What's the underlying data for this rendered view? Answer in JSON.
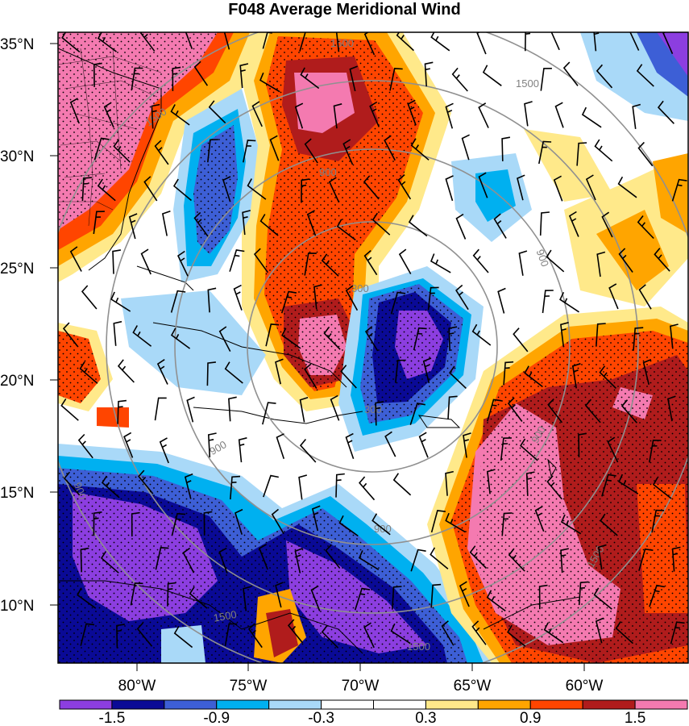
{
  "title": "F048 Average Meridional Wind",
  "lat_ticks": [
    "35°N",
    "30°N",
    "25°N",
    "20°N",
    "15°N",
    "10°N"
  ],
  "lon_ticks": [
    "80°W",
    "75°W",
    "70°W",
    "65°W",
    "60°W"
  ],
  "colorbar": {
    "labels": [
      "-1.5",
      "-0.9",
      "-0.3",
      "0.3",
      "0.9",
      "1.5"
    ],
    "colors": [
      "#8c3ee0",
      "#0a0a96",
      "#3d5fd6",
      "#00b0f0",
      "#a9d9f8",
      "#ffffff",
      "#ffffff",
      "#ffe98a",
      "#ffa500",
      "#ff4500",
      "#b01c1c",
      "#f47ab0"
    ]
  },
  "contour_labels": [
    "1500",
    "1500",
    "1500",
    "900",
    "900",
    "900",
    "900",
    "900",
    "900",
    "300",
    "300",
    "1500",
    "1500",
    "1500"
  ],
  "contour_color": "#909090",
  "stipple_color": "#000000"
}
